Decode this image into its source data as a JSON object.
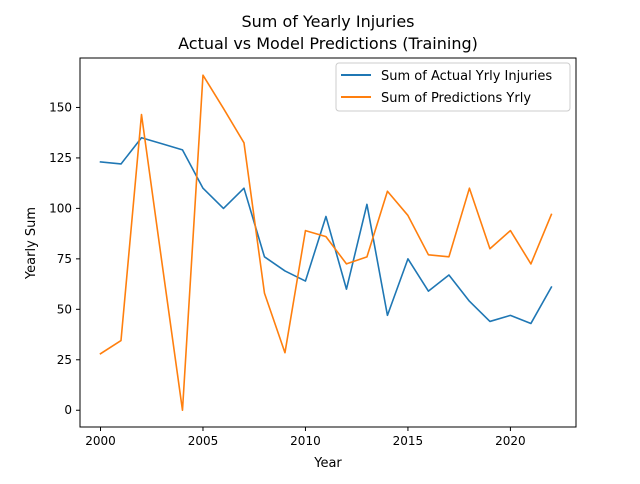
{
  "chart_data": {
    "type": "line",
    "title": "Sum of Yearly Injuries",
    "subtitle": "Actual vs Model Predictions (Training)",
    "xlabel": "Year",
    "ylabel": "Yearly Sum",
    "xlim": [
      1999,
      2023.2
    ],
    "ylim": [
      -8.3,
      174.5
    ],
    "xticks": [
      2000,
      2005,
      2010,
      2015,
      2020
    ],
    "yticks": [
      0,
      25,
      50,
      75,
      100,
      125,
      150
    ],
    "grid": false,
    "legend_position": "top-right",
    "x": [
      2000,
      2001,
      2002,
      2003,
      2004,
      2005,
      2006,
      2007,
      2008,
      2009,
      2010,
      2011,
      2012,
      2013,
      2014,
      2015,
      2016,
      2017,
      2018,
      2019,
      2020,
      2021,
      2022
    ],
    "series": [
      {
        "name": "Sum of Actual Yrly Injuries",
        "color": "#1f77b4",
        "values": [
          123,
          122,
          135,
          132,
          129,
          110,
          100,
          110,
          76,
          69,
          64,
          96,
          60,
          102,
          47,
          75,
          59,
          67,
          54,
          44,
          47,
          43,
          61
        ]
      },
      {
        "name": "Sum of Predictions Yrly",
        "color": "#ff7f0e",
        "values": [
          28,
          34.5,
          146.5,
          73,
          0,
          166,
          149.5,
          132.5,
          58,
          28.5,
          89,
          86,
          72.5,
          76,
          108.5,
          96.5,
          77,
          76,
          110,
          80,
          89,
          72.5,
          97
        ]
      }
    ]
  }
}
